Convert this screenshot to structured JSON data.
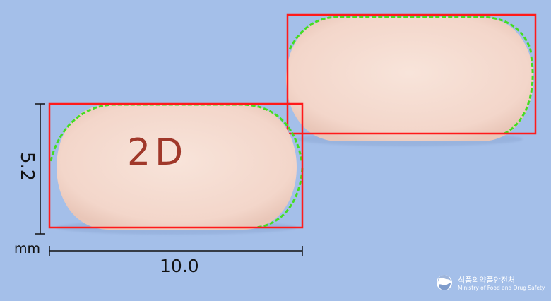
{
  "measurements": {
    "height_value": "5.2",
    "unit": "mm",
    "width_value": "10.0"
  },
  "pill": {
    "imprint": "2D",
    "imprint_color": "#a0382a",
    "body_color": "#f6ddd2"
  },
  "annotations": {
    "box_color": "#ff1a1a",
    "outline_color": "#44dd22"
  },
  "watermark": {
    "korean": "식품의약품안전처",
    "english": "Ministry of Food and Drug Safety",
    "icon": "mfds-logo-icon"
  },
  "colors": {
    "background": "#a4bfe9"
  }
}
